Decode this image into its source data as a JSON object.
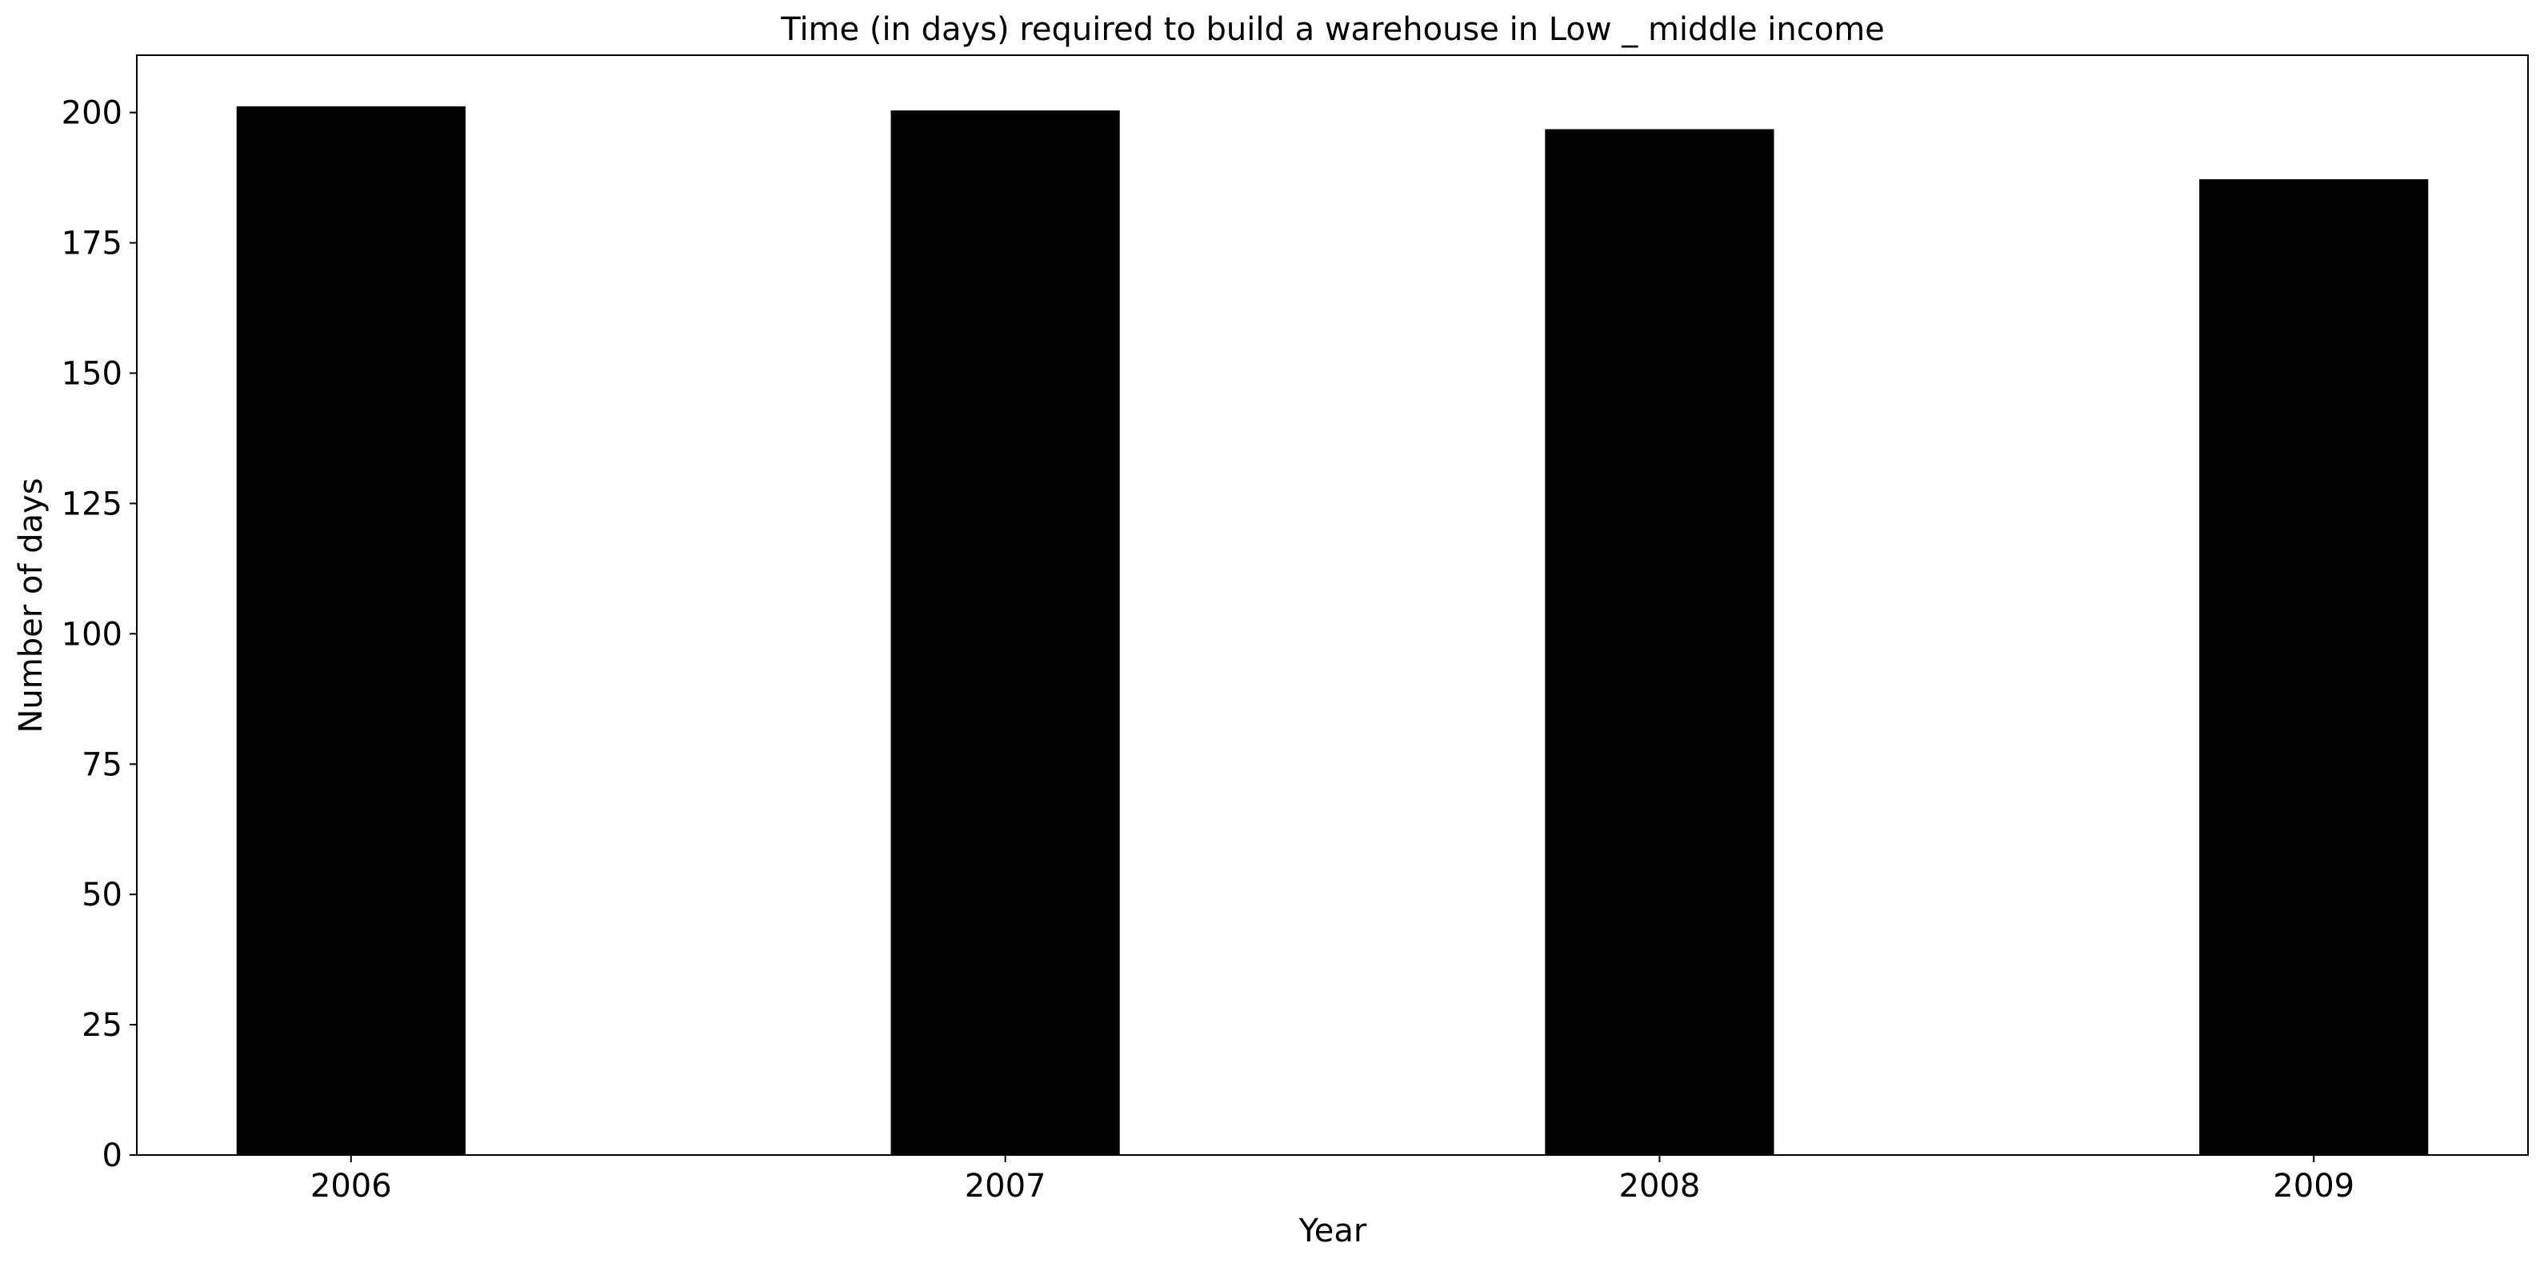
{
  "chart_data": {
    "type": "bar",
    "title": "Time (in days) required to build a warehouse in Low _ middle income",
    "xlabel": "Year",
    "ylabel": "Number of days",
    "categories": [
      "2006",
      "2007",
      "2008",
      "2009"
    ],
    "values": [
      201.2,
      200.4,
      196.8,
      187.2
    ],
    "ylim": [
      0,
      211
    ],
    "yticks": [
      0,
      25,
      50,
      75,
      100,
      125,
      150,
      175,
      200
    ],
    "bar_color": "#000000",
    "grid": false,
    "legend": "none"
  }
}
